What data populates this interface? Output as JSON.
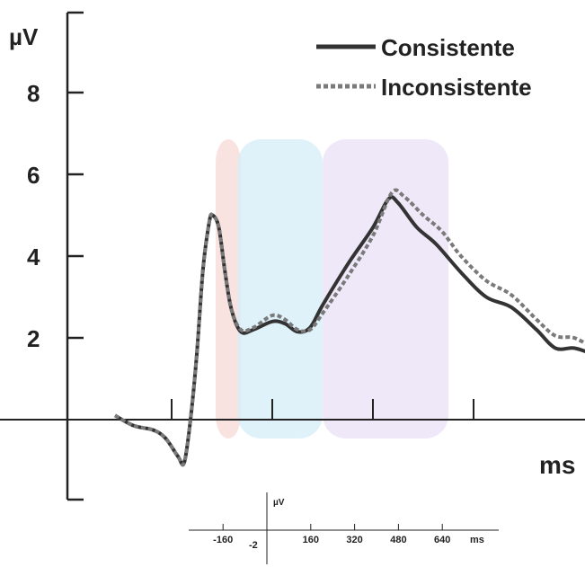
{
  "chart_data": {
    "type": "line",
    "ylabel": "µV",
    "xlabel": "ms",
    "yticks": [
      "2",
      "4",
      "6",
      "8"
    ],
    "ylim": [
      -2,
      10
    ],
    "legend_position": "top-right",
    "series": [
      {
        "name": "Consistente",
        "color": "#333333",
        "style": "solid",
        "points": [
          [
            -250,
            0.1
          ],
          [
            -220,
            -0.15
          ],
          [
            -190,
            -0.25
          ],
          [
            -170,
            -0.45
          ],
          [
            -150,
            -0.9
          ],
          [
            -140,
            -1.05
          ],
          [
            -130,
            0.0
          ],
          [
            -120,
            1.6
          ],
          [
            -110,
            3.7
          ],
          [
            -100,
            4.85
          ],
          [
            -95,
            5.0
          ],
          [
            -85,
            4.7
          ],
          [
            -75,
            3.6
          ],
          [
            -65,
            2.7
          ],
          [
            -50,
            2.15
          ],
          [
            -30,
            2.2
          ],
          [
            0,
            2.4
          ],
          [
            20,
            2.35
          ],
          [
            40,
            2.15
          ],
          [
            60,
            2.25
          ],
          [
            80,
            2.8
          ],
          [
            120,
            3.8
          ],
          [
            160,
            4.7
          ],
          [
            185,
            5.4
          ],
          [
            200,
            5.3
          ],
          [
            230,
            4.7
          ],
          [
            260,
            4.3
          ],
          [
            300,
            3.6
          ],
          [
            340,
            3.0
          ],
          [
            380,
            2.75
          ],
          [
            420,
            2.2
          ],
          [
            450,
            1.75
          ],
          [
            480,
            1.75
          ],
          [
            510,
            1.6
          ]
        ]
      },
      {
        "name": "Inconsistente",
        "color": "#7a7a7a",
        "style": "dotted",
        "points": [
          [
            -250,
            0.1
          ],
          [
            -220,
            -0.15
          ],
          [
            -190,
            -0.25
          ],
          [
            -170,
            -0.45
          ],
          [
            -150,
            -0.9
          ],
          [
            -140,
            -1.05
          ],
          [
            -130,
            0.0
          ],
          [
            -120,
            1.6
          ],
          [
            -110,
            3.7
          ],
          [
            -100,
            4.85
          ],
          [
            -95,
            5.0
          ],
          [
            -85,
            4.7
          ],
          [
            -75,
            3.6
          ],
          [
            -65,
            2.7
          ],
          [
            -50,
            2.2
          ],
          [
            -30,
            2.25
          ],
          [
            0,
            2.55
          ],
          [
            20,
            2.45
          ],
          [
            40,
            2.2
          ],
          [
            60,
            2.2
          ],
          [
            80,
            2.6
          ],
          [
            120,
            3.5
          ],
          [
            160,
            4.5
          ],
          [
            190,
            5.55
          ],
          [
            210,
            5.45
          ],
          [
            240,
            5.0
          ],
          [
            270,
            4.6
          ],
          [
            300,
            4.0
          ],
          [
            340,
            3.4
          ],
          [
            380,
            3.05
          ],
          [
            420,
            2.45
          ],
          [
            450,
            2.05
          ],
          [
            480,
            2.0
          ],
          [
            510,
            1.75
          ]
        ]
      }
    ],
    "windows": [
      {
        "x0": -90,
        "x1": -50,
        "color": "#f7d9d6"
      },
      {
        "x0": -55,
        "x1": 80,
        "color": "#d4eef8"
      },
      {
        "x0": 80,
        "x1": 280,
        "color": "#e9e0f5"
      }
    ]
  },
  "inset_axis": {
    "ylabel": "µV",
    "xlabel": "ms",
    "ylabel_value": "-2",
    "ticks": [
      {
        "label": "-160",
        "value": -160
      },
      {
        "label": "160",
        "value": 160
      },
      {
        "label": "320",
        "value": 320
      },
      {
        "label": "480",
        "value": 480
      },
      {
        "label": "640",
        "value": 640
      }
    ]
  }
}
